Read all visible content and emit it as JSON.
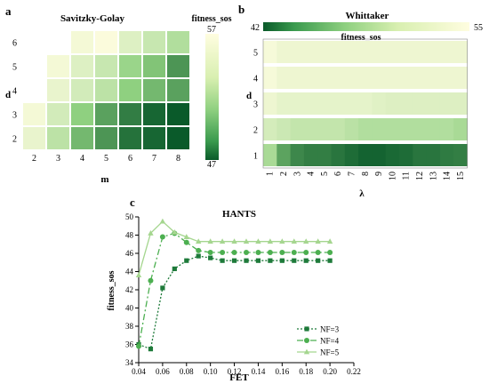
{
  "panels": {
    "a": "a",
    "b": "b",
    "c": "c"
  },
  "chart_data": [
    {
      "type": "heatmap",
      "title": "Savitzky-Golay",
      "xlabel": "m",
      "ylabel": "d",
      "x": [
        "2",
        "3",
        "4",
        "5",
        "6",
        "7",
        "8"
      ],
      "y": [
        "2",
        "3",
        "4",
        "5",
        "6"
      ],
      "colorbar": {
        "title": "fitness_sos",
        "min": 47,
        "max": 57,
        "tick_labels": [
          "57",
          "47"
        ]
      },
      "grid": [
        [
          56,
          54,
          51,
          49.5,
          48,
          47.5,
          47
        ],
        [
          56.5,
          55,
          52,
          50,
          48.5,
          47.5,
          47
        ],
        [
          null,
          56,
          55,
          54,
          52,
          51,
          50
        ],
        [
          null,
          56.5,
          55.5,
          54.5,
          52.5,
          51.5,
          49.5
        ],
        [
          null,
          null,
          56.5,
          56.8,
          55.5,
          54.5,
          53.5
        ]
      ],
      "missing_color": "#ffffff",
      "colors": {
        "low": "#0a5a2a",
        "mid": "#8fd080",
        "high": "#fffde0"
      }
    },
    {
      "type": "heatmap",
      "title": "Whittaker",
      "xlabel": "λ",
      "ylabel": "d",
      "x": [
        "1",
        "2",
        "3",
        "4",
        "5",
        "6",
        "7",
        "8",
        "9",
        "10",
        "11",
        "12",
        "13",
        "14",
        "15"
      ],
      "y": [
        "1",
        "2",
        "3",
        "4",
        "5"
      ],
      "colorbar": {
        "title": "fitness_sos",
        "min": 42,
        "max": 55,
        "tick_labels": [
          "42",
          "55"
        ]
      },
      "grid": [
        [
          50,
          46,
          44.5,
          44,
          44,
          43.5,
          43,
          42.5,
          42.5,
          42.8,
          43,
          43.5,
          43.5,
          43.8,
          44
        ],
        [
          52.5,
          52,
          51.5,
          51.5,
          51.5,
          51.5,
          51,
          50.5,
          50.5,
          50.5,
          50.5,
          50.5,
          50.5,
          50.5,
          50
        ],
        [
          54,
          53.5,
          53.5,
          53.5,
          53.5,
          53.5,
          53.5,
          53.5,
          53.2,
          53,
          53,
          53,
          53,
          53,
          53
        ],
        [
          54.5,
          54,
          54,
          54,
          54,
          54,
          54,
          54,
          54,
          54,
          54,
          54,
          54,
          54,
          54
        ],
        [
          54.5,
          54,
          54,
          54,
          54,
          54,
          54,
          54,
          54,
          54,
          54,
          54,
          54,
          54,
          54
        ]
      ],
      "colors": {
        "low": "#0a5a2a",
        "mid": "#8fd080",
        "high": "#fffde0"
      }
    },
    {
      "type": "line",
      "title": "HANTS",
      "xlabel": "FET",
      "ylabel": "fitness_sos",
      "xlim": [
        0.04,
        0.22
      ],
      "ylim": [
        34,
        50
      ],
      "xticks": [
        "0.04",
        "0.06",
        "0.08",
        "0.10",
        "0.12",
        "0.14",
        "0.16",
        "0.18",
        "0.20",
        "0.22"
      ],
      "yticks": [
        "34",
        "36",
        "38",
        "40",
        "42",
        "44",
        "46",
        "48",
        "50"
      ],
      "x": [
        0.04,
        0.05,
        0.06,
        0.07,
        0.08,
        0.09,
        0.1,
        0.11,
        0.12,
        0.13,
        0.14,
        0.15,
        0.16,
        0.17,
        0.18,
        0.19,
        0.2
      ],
      "series": [
        {
          "name": "NF=3",
          "values": [
            36.0,
            35.5,
            42.2,
            44.3,
            45.2,
            45.7,
            45.5,
            45.2,
            45.2,
            45.2,
            45.2,
            45.2,
            45.2,
            45.2,
            45.2,
            45.2,
            45.2
          ],
          "color": "#1e7a3a",
          "dash": "2,2",
          "marker": "square"
        },
        {
          "name": "NF=4",
          "values": [
            35.8,
            43.0,
            47.8,
            48.2,
            47.2,
            46.3,
            46.1,
            46.1,
            46.1,
            46.1,
            46.1,
            46.1,
            46.1,
            46.1,
            46.1,
            46.1,
            46.1
          ],
          "color": "#4caf50",
          "dash": "7,3,2,3",
          "marker": "circle"
        },
        {
          "name": "NF=5",
          "values": [
            43.6,
            48.2,
            49.5,
            48.3,
            47.8,
            47.3,
            47.3,
            47.3,
            47.3,
            47.3,
            47.3,
            47.3,
            47.3,
            47.3,
            47.3,
            47.3,
            47.3
          ],
          "color": "#a5d68f",
          "dash": "",
          "marker": "triangle"
        }
      ],
      "legend": "bottom-right",
      "grid": false
    }
  ]
}
